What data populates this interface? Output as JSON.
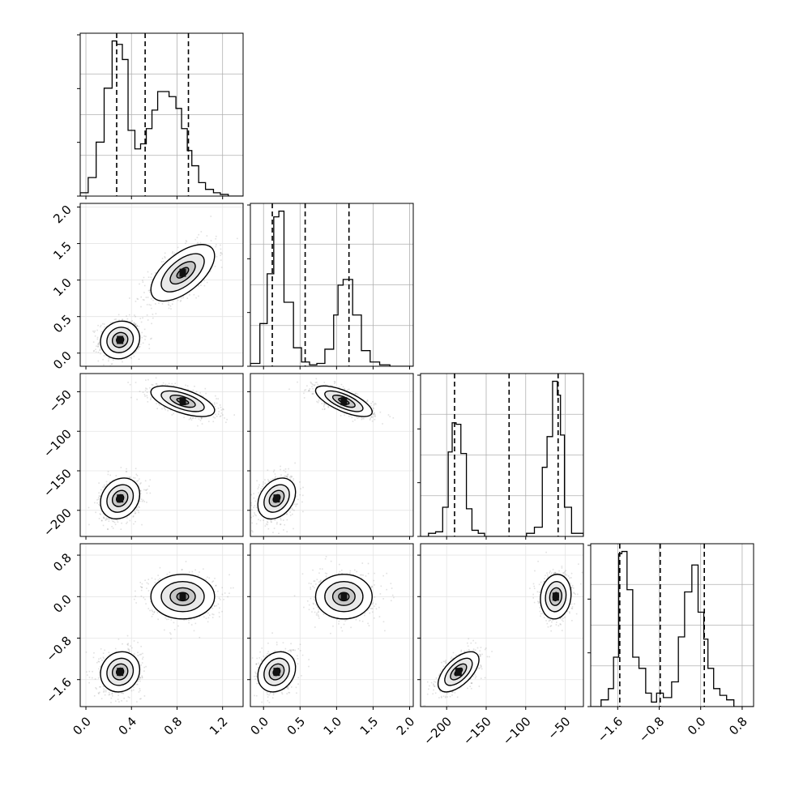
{
  "chart_data": {
    "type": "corner",
    "variables": [
      {
        "id": "p0",
        "range": [
          -0.05,
          1.38
        ],
        "ticks": [
          0.0,
          0.4,
          0.8,
          1.2
        ],
        "tick_labels": [
          "0.0",
          "0.4",
          "0.8",
          "1.2"
        ],
        "quantiles": [
          0.27,
          0.52,
          0.9
        ]
      },
      {
        "id": "p1",
        "range": [
          -0.18,
          2.05
        ],
        "ticks": [
          0.0,
          0.5,
          1.0,
          1.5,
          2.0
        ],
        "tick_labels": [
          "0.0",
          "0.5",
          "1.0",
          "1.5",
          "2.0"
        ],
        "quantiles": [
          0.12,
          0.57,
          1.17
        ]
      },
      {
        "id": "p2",
        "range": [
          -233,
          -27
        ],
        "ticks": [
          -200,
          -150,
          -100,
          -50
        ],
        "tick_labels": [
          "−200",
          "−150",
          "−100",
          "−50"
        ],
        "quantiles": [
          -190,
          -121,
          -59
        ]
      },
      {
        "id": "p3",
        "range": [
          -2.12,
          1.02
        ],
        "ticks": [
          -1.6,
          -0.8,
          0.0,
          0.8
        ],
        "tick_labels": [
          "−1.6",
          "−0.8",
          "0.0",
          "0.8"
        ],
        "quantiles": [
          -1.56,
          -0.78,
          0.07
        ]
      }
    ],
    "histograms": [
      {
        "variable": "p0",
        "edges": [
          -0.05,
          0.02,
          0.09,
          0.16,
          0.23,
          0.27,
          0.32,
          0.37,
          0.43,
          0.48,
          0.53,
          0.58,
          0.63,
          0.68,
          0.73,
          0.79,
          0.84,
          0.89,
          0.93,
          0.99,
          1.05,
          1.12,
          1.18,
          1.25,
          1.31,
          1.38
        ],
        "counts": [
          0.2,
          1.1,
          3.2,
          6.4,
          9.2,
          9.0,
          8.1,
          3.9,
          2.8,
          3.1,
          4.0,
          5.1,
          6.2,
          6.2,
          5.9,
          5.2,
          4.0,
          2.7,
          1.8,
          0.8,
          0.4,
          0.2,
          0.1,
          0,
          0
        ]
      },
      {
        "variable": "p1",
        "edges": [
          -0.18,
          -0.05,
          0.05,
          0.14,
          0.21,
          0.28,
          0.41,
          0.52,
          0.63,
          0.73,
          0.84,
          0.96,
          1.02,
          1.09,
          1.18,
          1.22,
          1.34,
          1.46,
          1.59,
          1.73,
          1.85,
          2.05
        ],
        "counts": [
          0.2,
          3.0,
          6.5,
          10.5,
          10.9,
          4.5,
          1.3,
          0.3,
          0.1,
          0.2,
          1.2,
          3.6,
          5.7,
          6.1,
          6.1,
          3.6,
          1.1,
          0.3,
          0.1,
          0,
          0
        ]
      },
      {
        "variable": "p2",
        "edges": [
          -233,
          -223,
          -214,
          -205,
          -198,
          -193,
          -188,
          -182,
          -175,
          -168,
          -160,
          -152,
          -143,
          -132,
          -121,
          -111,
          -99,
          -89,
          -79,
          -73,
          -66,
          -60,
          -56,
          -51,
          -42,
          -27
        ],
        "counts": [
          0,
          0.2,
          0.3,
          1.9,
          5.5,
          7.4,
          7.3,
          5.4,
          1.8,
          0.4,
          0.2,
          0,
          0,
          0,
          0,
          0,
          0.2,
          0.6,
          4.5,
          6.5,
          10.1,
          9.2,
          6.6,
          1.9,
          0.2
        ]
      },
      {
        "variable": "p3",
        "edges": [
          -2.12,
          -1.92,
          -1.78,
          -1.68,
          -1.58,
          -1.52,
          -1.42,
          -1.31,
          -1.19,
          -1.06,
          -0.95,
          -0.85,
          -0.72,
          -0.56,
          -0.43,
          -0.31,
          -0.17,
          -0.05,
          0.06,
          0.14,
          0.25,
          0.37,
          0.5,
          0.64,
          0.78,
          1.02
        ],
        "counts": [
          0,
          0.3,
          0.8,
          2.2,
          6.8,
          6.9,
          5.2,
          2.2,
          1.7,
          0.6,
          0.2,
          0.6,
          0.4,
          1.1,
          3.1,
          5.1,
          6.3,
          4.2,
          3.0,
          1.7,
          0.8,
          0.5,
          0.3,
          0,
          0
        ]
      }
    ],
    "modes": [
      {
        "p0": 0.3,
        "p1": 0.18,
        "p2": -185,
        "p3": -1.45,
        "sd": {
          "p0": 0.08,
          "p1": 0.12,
          "p2": 12,
          "p3": 0.18
        },
        "corr": {
          "p0-p1": 0.1,
          "p0-p2": 0.2,
          "p0-p3": 0.1,
          "p1-p2": 0.3,
          "p1-p3": 0.2,
          "p2-p3": 0.6
        }
      },
      {
        "p0": 0.85,
        "p1": 1.1,
        "p2": -62,
        "p3": 0.0,
        "sd": {
          "p0": 0.13,
          "p1": 0.18,
          "p2": 9,
          "p3": 0.2
        },
        "corr": {
          "p0-p1": 0.6,
          "p0-p2": -0.6,
          "p0-p3": 0.0,
          "p1-p2": -0.7,
          "p1-p3": 0.0,
          "p2-p3": 0.1
        }
      }
    ],
    "grid": true,
    "title": "",
    "xlabel": "",
    "ylabel": ""
  }
}
